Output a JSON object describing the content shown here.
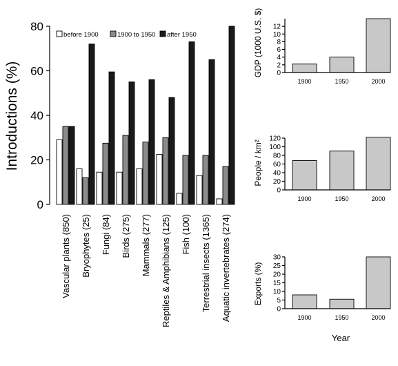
{
  "chart_data": [
    {
      "type": "bar",
      "ylabel": "Introductions (%)",
      "ylim": [
        0,
        80
      ],
      "yticks": [
        "0",
        "20",
        "40",
        "60",
        "80"
      ],
      "categories": [
        "Vascular plants (850)",
        "Bryophytes (25)",
        "Fungi (84)",
        "Birds (275)",
        "Mammals (277)",
        "Reptiles & Amphibians (125)",
        "Fish (100)",
        "Terrestrial insects (1365)",
        "Aquatic invertebrates (274)"
      ],
      "legend_position": "top",
      "series": [
        {
          "name": "before 1900",
          "color": "#ffffff",
          "values": [
            29,
            16,
            14.5,
            14.5,
            16,
            22.5,
            5,
            13,
            2.5
          ]
        },
        {
          "name": "1900 to 1950",
          "color": "#8c8c8c",
          "values": [
            35,
            12,
            27.5,
            31,
            28,
            30,
            22,
            22,
            17
          ]
        },
        {
          "name": "after 1950",
          "color": "#1a1a1a",
          "values": [
            35,
            72,
            59.5,
            55,
            56,
            48,
            73,
            65,
            80
          ]
        }
      ]
    },
    {
      "type": "bar",
      "ylabel": "GDP (1000 U.S. $)",
      "ylim": [
        0,
        14
      ],
      "yticks": [
        "0",
        "2",
        "4",
        "6",
        "8",
        "10",
        "12"
      ],
      "categories": [
        "1900",
        "1950",
        "2000"
      ],
      "values": [
        2.2,
        4.0,
        14.0
      ],
      "color": "#c8c8c8"
    },
    {
      "type": "bar",
      "ylabel": "People / km²",
      "ylim": [
        0,
        120
      ],
      "yticks": [
        "0",
        "20",
        "40",
        "60",
        "80",
        "100",
        "120"
      ],
      "categories": [
        "1900",
        "1950",
        "2000"
      ],
      "values": [
        68,
        90,
        122
      ],
      "color": "#c8c8c8"
    },
    {
      "type": "bar",
      "ylabel": "Exports (%)",
      "xlabel": "Year",
      "ylim": [
        0,
        30
      ],
      "yticks": [
        "0",
        "5",
        "10",
        "15",
        "20",
        "25",
        "30"
      ],
      "categories": [
        "1900",
        "1950",
        "2000"
      ],
      "values": [
        8,
        5.5,
        30
      ],
      "color": "#c8c8c8"
    }
  ]
}
